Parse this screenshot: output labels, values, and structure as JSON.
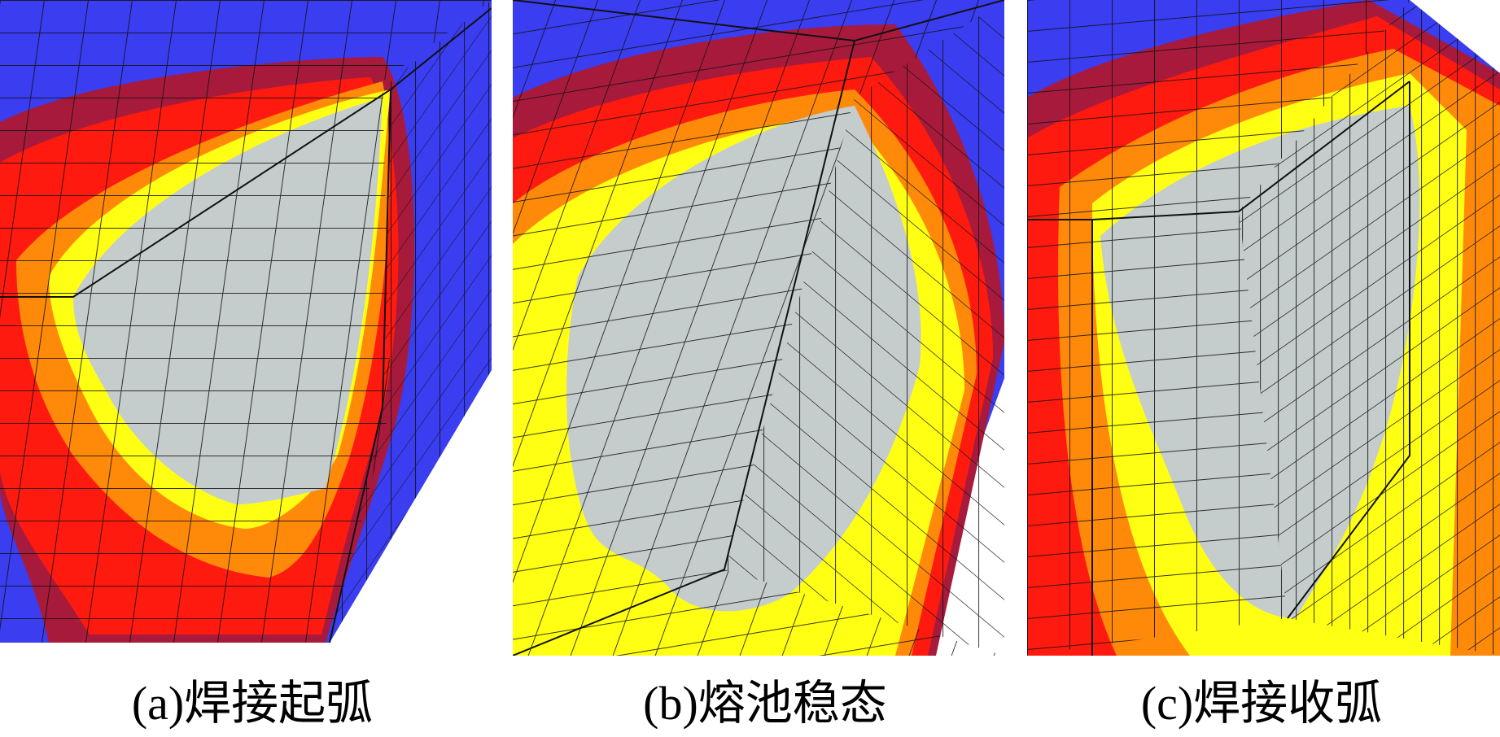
{
  "colors": {
    "cold": "#3a3df0",
    "cool": "#4b4be2",
    "dark_red": "#a81a3c",
    "red": "#ff1a0f",
    "orange": "#ff8a0a",
    "yellow": "#ffff14",
    "molten": "#c4cccc",
    "mesh_line": "#111111"
  },
  "panels": [
    {
      "id": "a",
      "caption": "(a)焊接起弧"
    },
    {
      "id": "b",
      "caption": "(b)熔池稳态"
    },
    {
      "id": "c",
      "caption": "(c)焊接收弧"
    }
  ]
}
